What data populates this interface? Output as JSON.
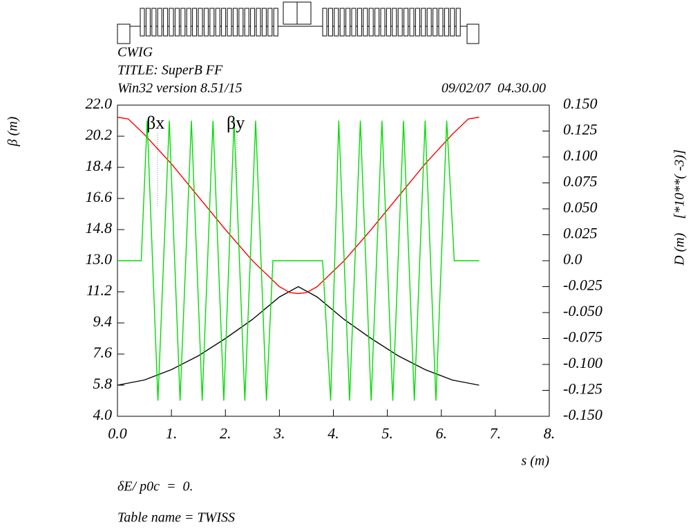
{
  "chart_data": {
    "type": "line",
    "header": [
      "CWIG",
      "TITLE: SuperB FF",
      "Win32 version 8.51/15"
    ],
    "date": "09/02/07  04.30.00",
    "ylabel": "β (m)",
    "y2label": "D (m)    [*10**( -3)]",
    "xlabel": "s (m)",
    "footer": [
      "δE/ p0c  =  0.",
      "Table name = TWISS"
    ],
    "xlim": [
      0,
      8
    ],
    "xticks": [
      {
        "value": 0,
        "label": "0.0"
      },
      {
        "value": 1,
        "label": "1."
      },
      {
        "value": 2,
        "label": "2."
      },
      {
        "value": 3,
        "label": "3."
      },
      {
        "value": 4,
        "label": "4."
      },
      {
        "value": 5,
        "label": "5."
      },
      {
        "value": 6,
        "label": "6."
      },
      {
        "value": 7,
        "label": "7."
      },
      {
        "value": 8,
        "label": "8."
      }
    ],
    "ylim": [
      4,
      22
    ],
    "yticks": [
      {
        "value": 4,
        "label": "4.0"
      },
      5.8,
      7.6,
      9.4,
      11.2,
      {
        "value": 13,
        "label": "13.0"
      },
      14.8,
      16.6,
      18.4,
      20.2,
      {
        "value": 22,
        "label": "22.0"
      }
    ],
    "y2lim": [
      -0.15,
      0.15
    ],
    "y2ticks": [
      {
        "value": -0.15,
        "label": "-0.150"
      },
      -0.125,
      {
        "value": -0.1,
        "label": "-0.100"
      },
      -0.075,
      {
        "value": -0.05,
        "label": "-0.050"
      },
      -0.025,
      {
        "value": 0,
        "label": "0.0"
      },
      0.025,
      {
        "value": 0.05,
        "label": "0.050"
      },
      0.075,
      {
        "value": 0.1,
        "label": "0.100"
      },
      0.125,
      {
        "value": 0.15,
        "label": "0.150"
      }
    ],
    "series": [
      {
        "name": "βx",
        "color": "#000000",
        "x": [
          0,
          0.5,
          1,
          1.5,
          2,
          2.5,
          3,
          3.35,
          3.7,
          4.2,
          4.7,
          5.2,
          5.7,
          6.2,
          6.7
        ],
        "values": [
          5.8,
          6.1,
          6.7,
          7.5,
          8.5,
          9.6,
          10.9,
          11.5,
          10.9,
          9.6,
          8.5,
          7.5,
          6.7,
          6.1,
          5.8
        ]
      },
      {
        "name": "βy",
        "color": "#ff0000",
        "x": [
          0,
          0.2,
          0.5,
          1,
          1.5,
          2,
          2.5,
          3,
          3.2,
          3.35,
          3.5,
          3.7,
          4.2,
          4.7,
          5.2,
          5.7,
          6.2,
          6.5,
          6.7
        ],
        "values": [
          21.3,
          21.2,
          20.3,
          18.6,
          16.7,
          14.8,
          13.0,
          11.5,
          11.15,
          11.1,
          11.15,
          11.5,
          13.0,
          14.8,
          16.7,
          18.6,
          20.3,
          21.2,
          21.3
        ]
      },
      {
        "color": "#00dd00",
        "axis": "y2",
        "x": [
          0,
          0.44,
          0.55,
          0.75,
          0.96,
          1.16,
          1.37,
          1.57,
          1.77,
          1.97,
          2.16,
          2.36,
          2.56,
          2.76,
          2.88,
          3.8,
          3.95,
          4.1,
          4.3,
          4.5,
          4.7,
          4.9,
          5.1,
          5.3,
          5.5,
          5.7,
          5.9,
          6.1,
          6.24,
          6.7
        ],
        "values": [
          0,
          0,
          0.135,
          -0.135,
          0.135,
          -0.135,
          0.135,
          -0.135,
          0.135,
          -0.135,
          0.135,
          -0.135,
          0.135,
          -0.135,
          0,
          0,
          -0.135,
          0.135,
          -0.135,
          0.135,
          -0.135,
          0.135,
          -0.135,
          0.135,
          -0.135,
          0.135,
          -0.135,
          0.135,
          0,
          0
        ]
      }
    ]
  }
}
